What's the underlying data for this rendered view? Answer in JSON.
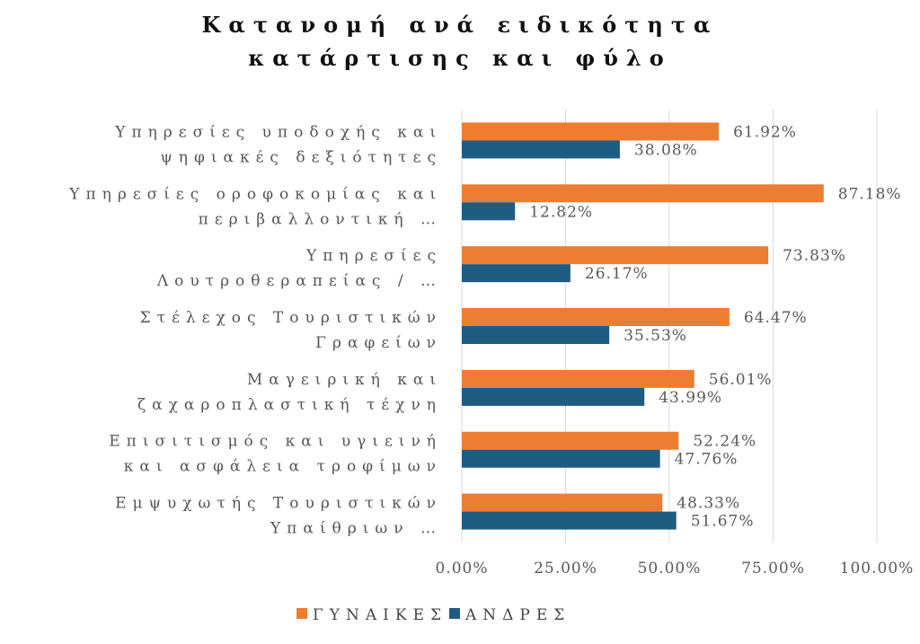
{
  "chart_data": {
    "type": "bar",
    "orientation": "horizontal",
    "title_lines": [
      "Κατανομή ανά ειδικότητα",
      "κατάρτισης και φύλο"
    ],
    "categories": [
      [
        "Υπηρεσίες υποδοχής και",
        "ψηφιακές δεξιότητες"
      ],
      [
        "Υπηρεσίες οροφοκομίας και",
        "περιβαλλοντική …"
      ],
      [
        "Υπηρεσίες",
        "Λουτροθεραπείας / …"
      ],
      [
        "Στέλεχος Τουριστικών",
        "Γραφείων"
      ],
      [
        "Μαγειρική και",
        "ζαχαροπλαστική τέχνη"
      ],
      [
        "Επισιτισμός και υγιεινή",
        "και ασφάλεια τροφίμων"
      ],
      [
        "Εμψυχωτής Τουριστικών",
        "Υπαίθριων …"
      ]
    ],
    "series": [
      {
        "name": "ΓΥΝΑΙΚΕΣ",
        "color": "#ED7D31",
        "values": [
          61.92,
          87.18,
          73.83,
          64.47,
          56.01,
          52.24,
          48.33
        ],
        "labels": [
          "61.92%",
          "87.18%",
          "73.83%",
          "64.47%",
          "56.01%",
          "52.24%",
          "48.33%"
        ]
      },
      {
        "name": "ΑΝΔΡΕΣ",
        "color": "#1F5C82",
        "values": [
          38.08,
          12.82,
          26.17,
          35.53,
          43.99,
          47.76,
          51.67
        ],
        "labels": [
          "38.08%",
          "12.82%",
          "26.17%",
          "35.53%",
          "43.99%",
          "47.76%",
          "51.67%"
        ]
      }
    ],
    "xlim": [
      0,
      100
    ],
    "x_ticks": [
      0,
      25,
      50,
      75,
      100
    ],
    "x_tick_labels": [
      "0.00%",
      "25.00%",
      "50.00%",
      "75.00%",
      "100.00%"
    ],
    "grid": "vertical",
    "legend_position": "bottom"
  }
}
